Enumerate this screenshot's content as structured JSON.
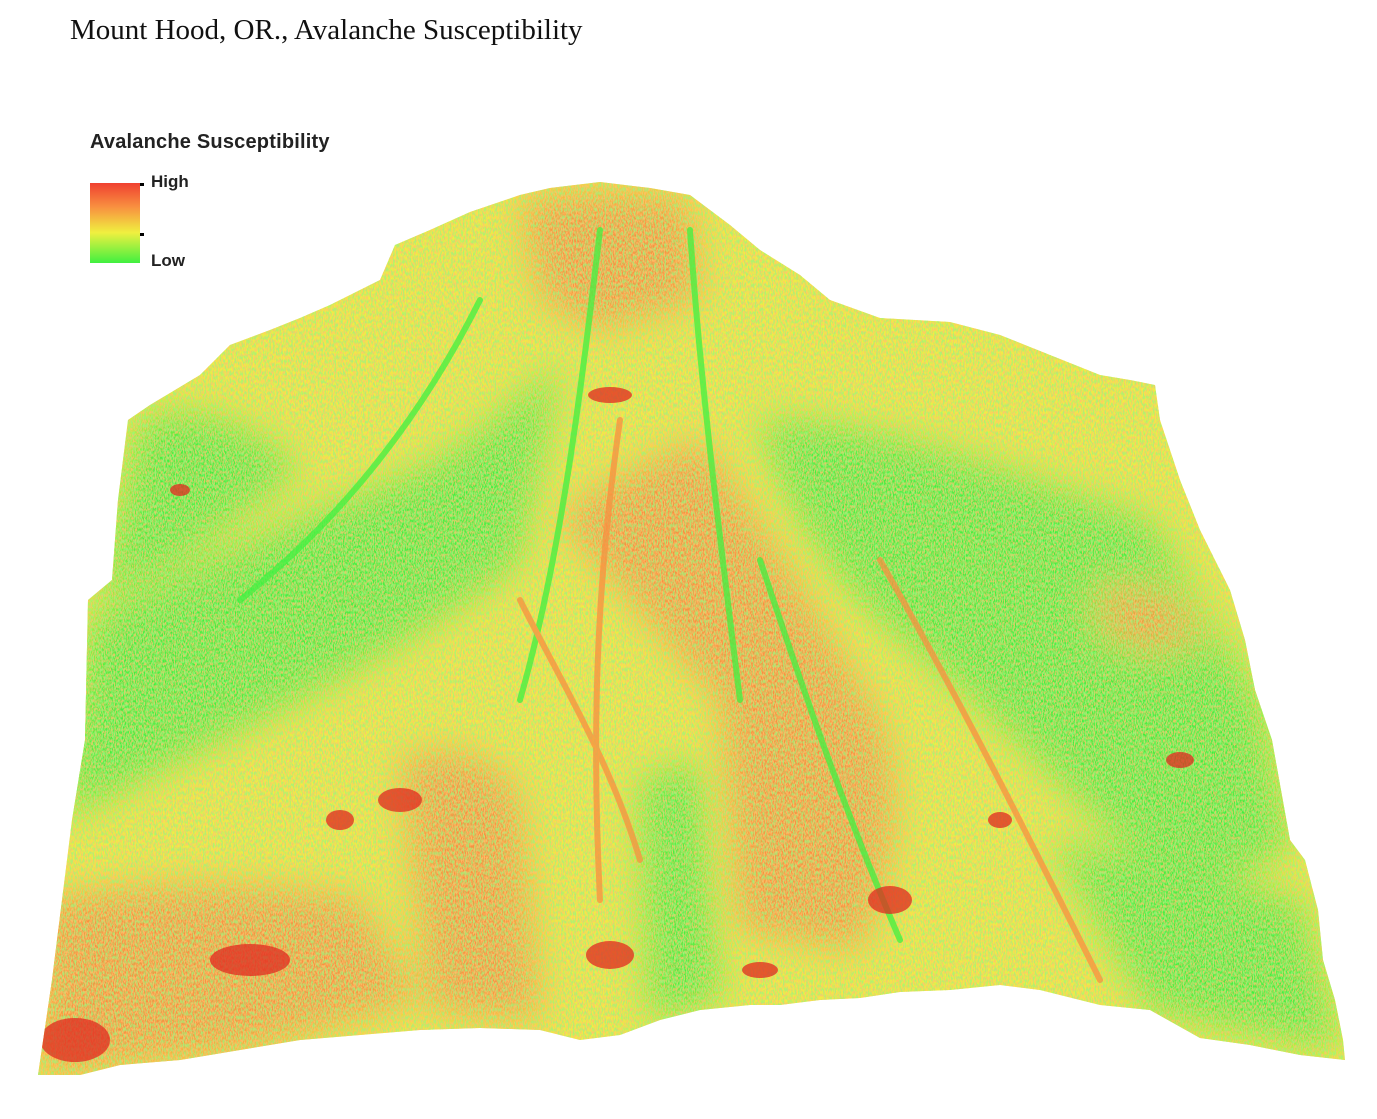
{
  "title": "Mount Hood, OR., Avalanche Susceptibility",
  "legend": {
    "title": "Avalanche Susceptibility",
    "high_label": "High",
    "low_label": "Low",
    "ramp_colors": [
      "#f04030",
      "#f89040",
      "#f0f040",
      "#40f040"
    ]
  },
  "map": {
    "colors": {
      "low": "#40f040",
      "medium": "#f0f040",
      "high": "#f89040",
      "very_high": "#e02a20"
    }
  }
}
